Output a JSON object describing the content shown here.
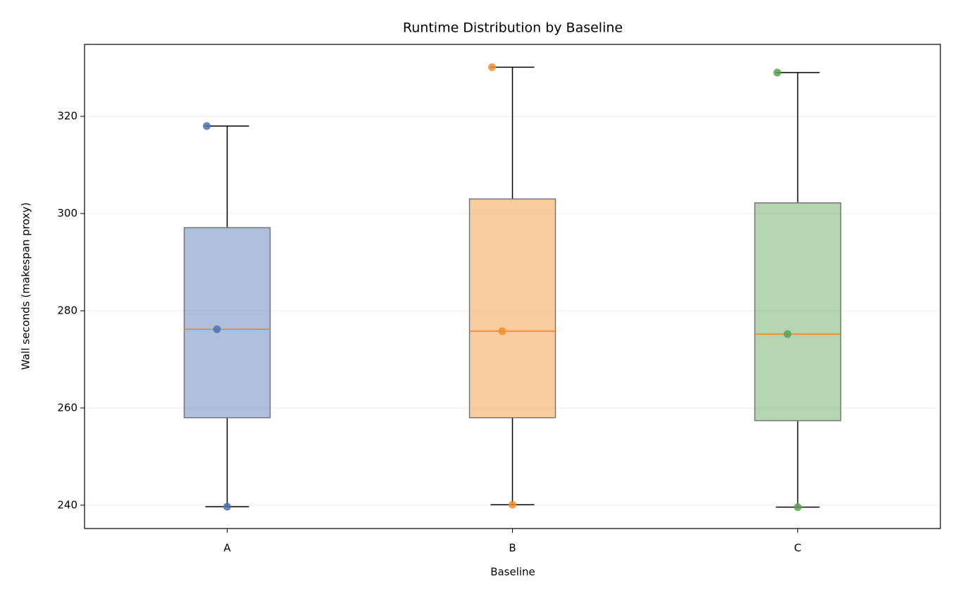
{
  "chart_data": {
    "type": "box",
    "title": "Runtime Distribution by Baseline",
    "xlabel": "Baseline",
    "ylabel": "Wall seconds (makespan proxy)",
    "categories": [
      "A",
      "B",
      "C"
    ],
    "boxes": [
      {
        "whislo": 239.7,
        "q1": 258.0,
        "median": 276.2,
        "q3": 297.1,
        "whishi": 318.0,
        "color": "#4c72b0",
        "points": [
          318.0,
          276.2,
          239.7
        ]
      },
      {
        "whislo": 240.1,
        "q1": 258.0,
        "median": 275.8,
        "q3": 303.0,
        "whishi": 330.1,
        "color": "#f28e2b",
        "points": [
          330.1,
          275.8,
          240.1
        ]
      },
      {
        "whislo": 239.6,
        "q1": 257.4,
        "median": 275.2,
        "q3": 302.2,
        "whishi": 329.0,
        "color": "#59a14f",
        "points": [
          329.0,
          275.2,
          239.6
        ]
      }
    ],
    "median_color": "#ff7f0e",
    "ylim": [
      235.2,
      334.8
    ],
    "yticks": [
      240,
      260,
      280,
      300,
      320
    ],
    "grid": true
  }
}
